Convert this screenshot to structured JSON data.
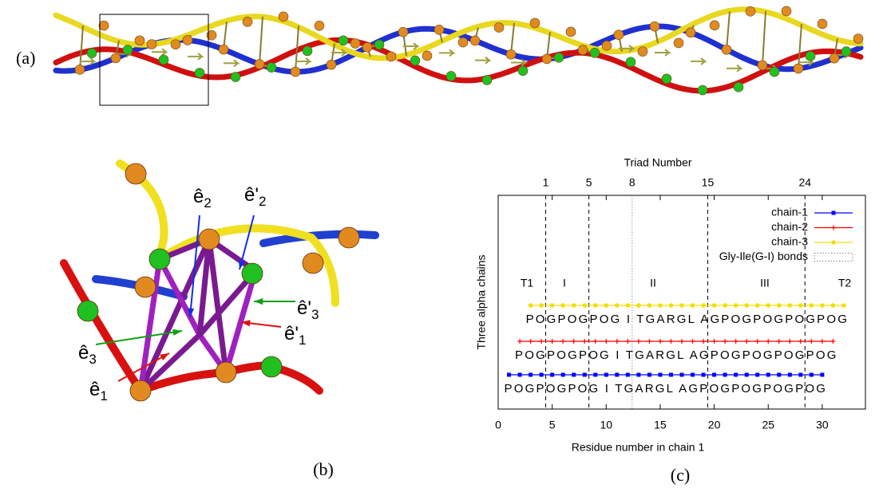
{
  "panel_labels": [
    "(a)",
    "(b)",
    "(c)"
  ],
  "figure_b": {
    "labels": [
      {
        "symbol": "ê",
        "sub": "2"
      },
      {
        "symbol": "ê'",
        "sub": "2"
      },
      {
        "symbol": "ê'",
        "sub": "3"
      },
      {
        "symbol": "ê'",
        "sub": "1"
      },
      {
        "symbol": "ê",
        "sub": "3"
      },
      {
        "symbol": "ê",
        "sub": "1"
      }
    ]
  },
  "chart_data": {
    "type": "scatter",
    "x2label": "Triad Number",
    "xlabel": "Residue number in chain 1",
    "ylabel": "Three alpha chains",
    "xlim": [
      0,
      34
    ],
    "xticks": [
      0,
      5,
      10,
      15,
      20,
      25,
      30
    ],
    "x2ticks": [
      {
        "value": 4.4,
        "label": "1"
      },
      {
        "value": 8.4,
        "label": "5"
      },
      {
        "value": 12.4,
        "label": "8"
      },
      {
        "value": 19.4,
        "label": "15"
      },
      {
        "value": 28.4,
        "label": "24"
      }
    ],
    "regions": [
      "T1",
      "I",
      "II",
      "III",
      "T2"
    ],
    "legend": "upper right",
    "series": [
      {
        "name": "chain-1",
        "color": "#0000ff",
        "marker": "square",
        "sequence": "POGPOGPOG I TGARGL AGPOGPOGPOGPOG",
        "x": [
          1,
          2,
          3,
          4,
          5,
          6,
          7,
          8,
          9,
          10,
          11,
          12,
          13,
          14,
          15,
          16,
          17,
          18,
          19,
          20,
          21,
          22,
          23,
          24,
          25,
          26,
          27,
          28,
          29,
          30
        ]
      },
      {
        "name": "chain-2",
        "color": "#ff0000",
        "marker": "plus",
        "sequence": "POGPOGPOG I TGARGL AGPOGPOGPOGPOG",
        "x": [
          2,
          3,
          4,
          5,
          6,
          7,
          8,
          9,
          10,
          11,
          12,
          13,
          14,
          15,
          16,
          17,
          18,
          19,
          20,
          21,
          22,
          23,
          24,
          25,
          26,
          27,
          28,
          29,
          30,
          31
        ]
      },
      {
        "name": "chain-3",
        "color": "#f0e000",
        "marker": "circle",
        "sequence": "POGPOGPOG I TGARGL AGPOGPOGPOGPOG",
        "x": [
          3,
          4,
          5,
          6,
          7,
          8,
          9,
          10,
          11,
          12,
          13,
          14,
          15,
          16,
          17,
          18,
          19,
          20,
          21,
          22,
          23,
          24,
          25,
          26,
          27,
          28,
          29,
          30,
          31,
          32
        ]
      },
      {
        "name": "Gly-Ile(G-I) bonds",
        "color": "#888888",
        "marker": "dotted",
        "x": [
          12.4
        ]
      }
    ]
  }
}
